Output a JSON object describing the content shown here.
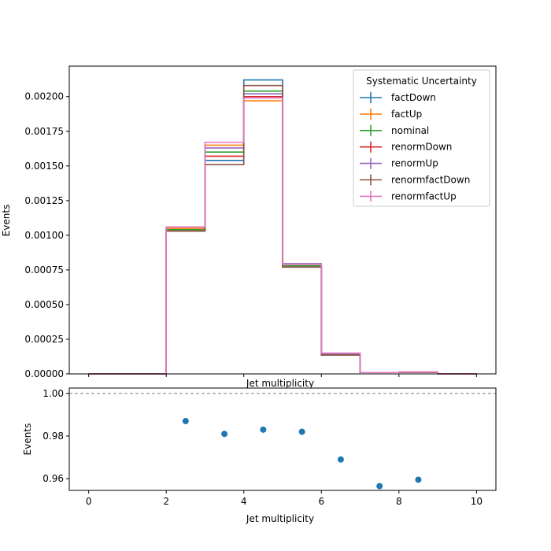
{
  "chart_data": [
    {
      "type": "line",
      "subtype": "step-histogram",
      "xlabel": "Jet multiplicity",
      "ylabel": "Events",
      "xlim": [
        -0.5,
        10.5
      ],
      "ylim": [
        0,
        0.00222
      ],
      "yticks": [
        "0.00000",
        "0.00025",
        "0.00050",
        "0.00075",
        "0.00100",
        "0.00125",
        "0.00150",
        "0.00175",
        "0.00200"
      ],
      "bin_edges": [
        0,
        1,
        2,
        3,
        4,
        5,
        6,
        7,
        8,
        9,
        10
      ],
      "legend": {
        "title": "Systematic Uncertainty",
        "position": "top-right"
      },
      "series": [
        {
          "name": "factDown",
          "color": "#1f77b4",
          "values": [
            0,
            0,
            0.00104,
            0.00154,
            0.00212,
            0.00078,
            0.000135,
            1e-05,
            1.2e-05,
            0
          ]
        },
        {
          "name": "factUp",
          "color": "#ff7f0e",
          "values": [
            0,
            0,
            0.00105,
            0.00165,
            0.00197,
            0.00079,
            0.000145,
            1e-05,
            1.3e-05,
            0
          ]
        },
        {
          "name": "nominal",
          "color": "#2ca02c",
          "values": [
            0,
            0,
            0.00104,
            0.0016,
            0.00204,
            0.00078,
            0.00014,
            1e-05,
            1.2e-05,
            0
          ]
        },
        {
          "name": "renormDown",
          "color": "#d62728",
          "values": [
            0,
            0,
            0.00103,
            0.00157,
            0.002,
            0.00077,
            0.000135,
            1e-05,
            1.2e-05,
            0
          ]
        },
        {
          "name": "renormUp",
          "color": "#9467bd",
          "values": [
            0,
            0,
            0.00106,
            0.00163,
            0.00202,
            0.000795,
            0.000145,
            1e-05,
            1.3e-05,
            0
          ]
        },
        {
          "name": "renormfactDown",
          "color": "#8c564b",
          "values": [
            0,
            0,
            0.00103,
            0.00151,
            0.00208,
            0.00077,
            0.000135,
            1e-05,
            1.2e-05,
            0
          ]
        },
        {
          "name": "renormfactUp",
          "color": "#e377c2",
          "values": [
            0,
            0,
            0.00106,
            0.00167,
            0.00199,
            0.00079,
            0.00015,
            1e-05,
            1.3e-05,
            0
          ]
        }
      ]
    },
    {
      "type": "scatter",
      "xlabel": "Jet multiplicity",
      "ylabel": "Events",
      "xlim": [
        -0.5,
        10.5
      ],
      "ylim": [
        0.9545,
        1.0025
      ],
      "xticks": [
        "0",
        "2",
        "4",
        "6",
        "8",
        "10"
      ],
      "yticks": [
        "0.96",
        "0.98",
        "1.00"
      ],
      "reference_line": 1.0,
      "series": [
        {
          "color": "#1f77b4",
          "x": [
            2.5,
            3.5,
            4.5,
            5.5,
            6.5,
            7.5,
            8.5
          ],
          "y": [
            0.987,
            0.981,
            0.983,
            0.982,
            0.969,
            0.9565,
            0.9595
          ]
        }
      ]
    }
  ]
}
